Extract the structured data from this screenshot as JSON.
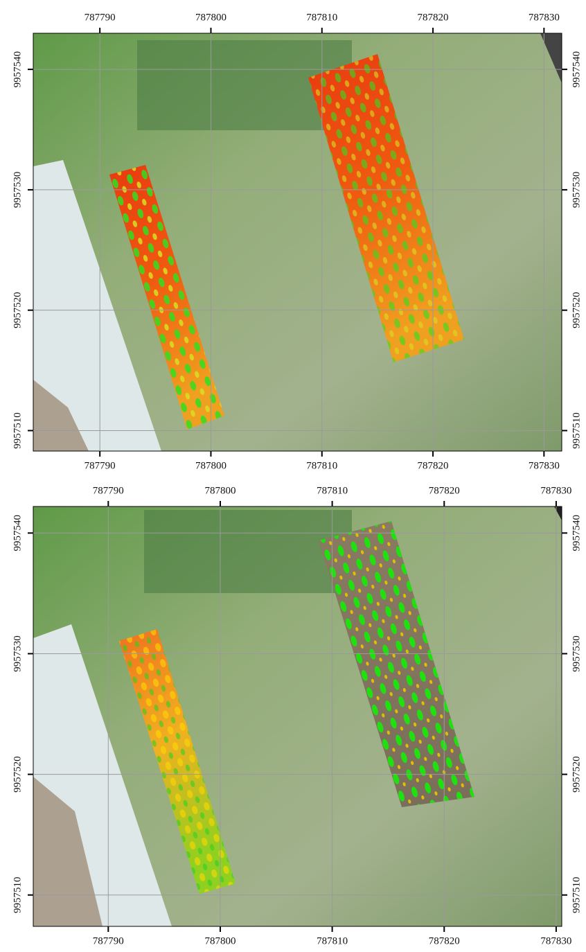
{
  "maps": [
    {
      "xlim": [
        787784,
        787831.6
      ],
      "ylim": [
        9957508.3,
        9957543
      ],
      "xticks": [
        787790,
        787800,
        787810,
        787820,
        787830
      ],
      "yticks": [
        9957510,
        9957520,
        9957530,
        9957540
      ]
    },
    {
      "xlim": [
        787783.3,
        787830.5
      ],
      "ylim": [
        9957507.4,
        9957542.2
      ],
      "xticks": [
        787790,
        787800,
        787810,
        787820,
        787830
      ],
      "yticks": [
        9957510,
        9957520,
        9957530,
        9957540
      ]
    }
  ]
}
